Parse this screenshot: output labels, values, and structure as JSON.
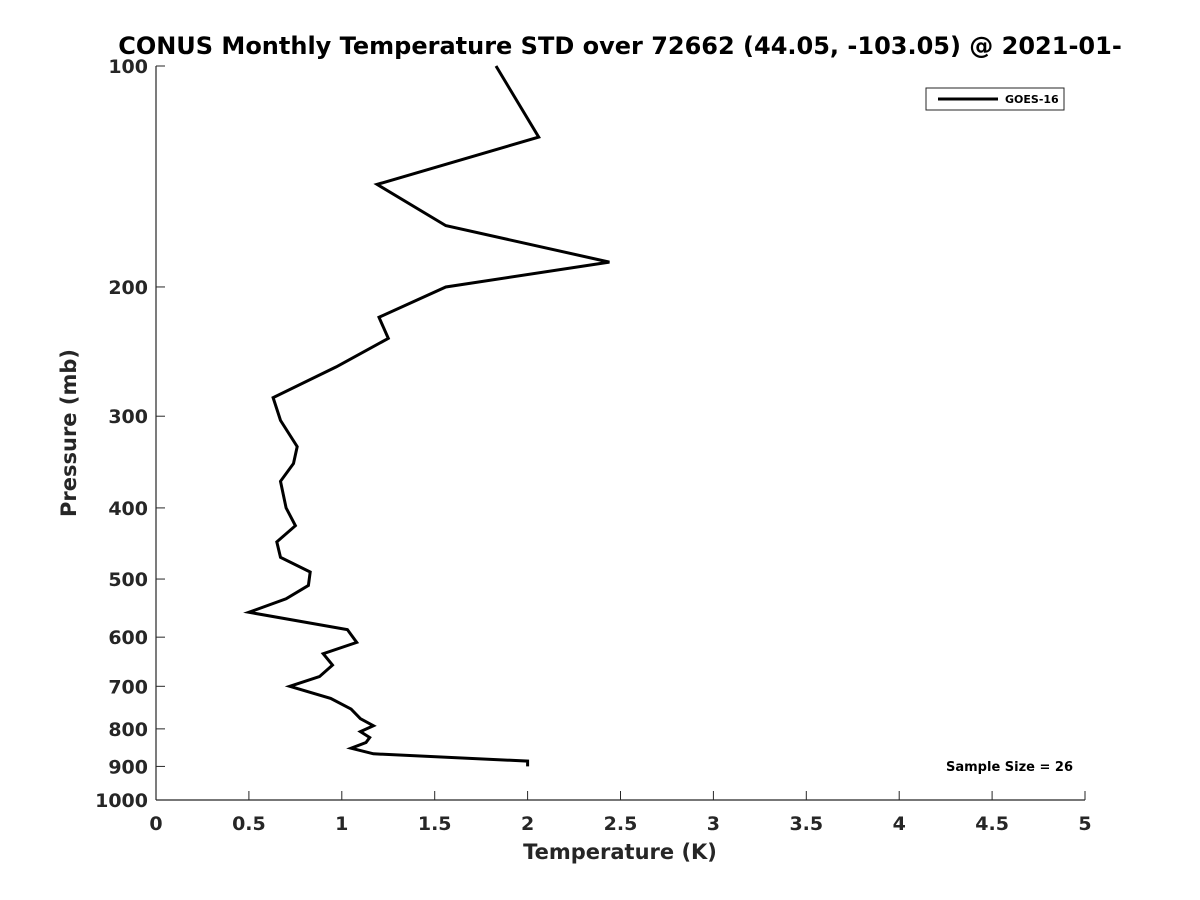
{
  "chart_data": {
    "type": "line",
    "title": "CONUS Monthly Temperature STD over 72662 (44.05, -103.05) @ 2021-01-",
    "xlabel": "Temperature (K)",
    "ylabel": "Pressure (mb)",
    "xlim": [
      0,
      5
    ],
    "ylim": [
      100,
      1000
    ],
    "y_scale": "log",
    "y_reversed": true,
    "grid": false,
    "legend_position": "top-right",
    "x_ticks": [
      "0",
      "0.5",
      "1",
      "1.5",
      "2",
      "2.5",
      "3",
      "3.5",
      "4",
      "4.5",
      "5"
    ],
    "y_ticks": [
      "100",
      "200",
      "300",
      "400",
      "500",
      "600",
      "700",
      "800",
      "900",
      "1000"
    ],
    "annotation": "Sample Size = 26",
    "series": [
      {
        "name": "GOES-16",
        "color": "#000000",
        "points": [
          {
            "x": 1.83,
            "p": 100
          },
          {
            "x": 2.06,
            "p": 125
          },
          {
            "x": 1.19,
            "p": 145
          },
          {
            "x": 1.56,
            "p": 165
          },
          {
            "x": 2.44,
            "p": 185
          },
          {
            "x": 1.56,
            "p": 200
          },
          {
            "x": 1.2,
            "p": 220
          },
          {
            "x": 1.25,
            "p": 235
          },
          {
            "x": 0.97,
            "p": 257
          },
          {
            "x": 0.63,
            "p": 283
          },
          {
            "x": 0.67,
            "p": 304
          },
          {
            "x": 0.76,
            "p": 330
          },
          {
            "x": 0.74,
            "p": 348
          },
          {
            "x": 0.67,
            "p": 368
          },
          {
            "x": 0.7,
            "p": 400
          },
          {
            "x": 0.75,
            "p": 423
          },
          {
            "x": 0.65,
            "p": 445
          },
          {
            "x": 0.67,
            "p": 467
          },
          {
            "x": 0.83,
            "p": 489
          },
          {
            "x": 0.82,
            "p": 510
          },
          {
            "x": 0.7,
            "p": 532
          },
          {
            "x": 0.5,
            "p": 555
          },
          {
            "x": 1.03,
            "p": 586
          },
          {
            "x": 1.08,
            "p": 610
          },
          {
            "x": 0.9,
            "p": 632
          },
          {
            "x": 0.95,
            "p": 655
          },
          {
            "x": 0.88,
            "p": 679
          },
          {
            "x": 0.72,
            "p": 700
          },
          {
            "x": 0.94,
            "p": 727
          },
          {
            "x": 1.05,
            "p": 752
          },
          {
            "x": 1.1,
            "p": 775
          },
          {
            "x": 1.17,
            "p": 792
          },
          {
            "x": 1.1,
            "p": 807
          },
          {
            "x": 1.15,
            "p": 822
          },
          {
            "x": 1.13,
            "p": 835
          },
          {
            "x": 1.05,
            "p": 850
          },
          {
            "x": 1.17,
            "p": 865
          },
          {
            "x": 2.0,
            "p": 885
          },
          {
            "x": 2.0,
            "p": 900
          }
        ]
      }
    ]
  }
}
